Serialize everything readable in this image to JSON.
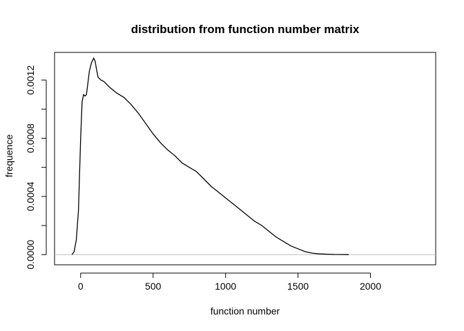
{
  "chart_data": {
    "type": "line",
    "title": "distribution from function number matrix",
    "xlabel": "function number",
    "ylabel": "frequence",
    "xlim": [
      -180,
      2450
    ],
    "ylim": [
      -7e-05,
      0.00139
    ],
    "x_ticks": [
      0,
      500,
      1000,
      1500,
      2000
    ],
    "x_tick_labels": [
      "0",
      "500",
      "1000",
      "1500",
      "2000"
    ],
    "y_ticks": [
      0,
      0.0004,
      0.0008,
      0.0012
    ],
    "y_tick_labels": [
      "0.0000",
      "0.0004",
      "0.0008",
      "0.0012"
    ],
    "y_minor_ticks": [
      0.0002,
      0.0006,
      0.001
    ],
    "baseline": {
      "y": 0,
      "color": "#bebebe"
    },
    "grid": false,
    "line_color": "#000000",
    "series": [
      {
        "x": [
          -60,
          -45,
          -30,
          -15,
          0,
          10,
          20,
          30,
          40,
          50,
          60,
          75,
          90,
          100,
          110,
          120,
          140,
          160,
          200,
          250,
          300,
          350,
          400,
          450,
          500,
          550,
          600,
          650,
          700,
          750,
          800,
          850,
          900,
          950,
          1000,
          1050,
          1100,
          1150,
          1200,
          1250,
          1300,
          1350,
          1400,
          1450,
          1500,
          1550,
          1600,
          1650,
          1700,
          1750,
          1800,
          1850
        ],
        "y": [
          0,
          2e-05,
          0.0001,
          0.0003,
          0.0008,
          0.00105,
          0.0011,
          0.00109,
          0.0011,
          0.00118,
          0.00126,
          0.00132,
          0.00135,
          0.00133,
          0.00127,
          0.00122,
          0.0012,
          0.00119,
          0.00115,
          0.00111,
          0.00108,
          0.00103,
          0.00097,
          0.0009,
          0.00083,
          0.00077,
          0.00072,
          0.00068,
          0.00063,
          0.0006,
          0.00057,
          0.00052,
          0.00047,
          0.00043,
          0.00039,
          0.00035,
          0.00031,
          0.00027,
          0.00023,
          0.0002,
          0.00016,
          0.00012,
          9e-05,
          6e-05,
          4e-05,
          2e-05,
          1e-05,
          5e-06,
          3e-06,
          1e-06,
          5e-07,
          0
        ]
      }
    ]
  }
}
